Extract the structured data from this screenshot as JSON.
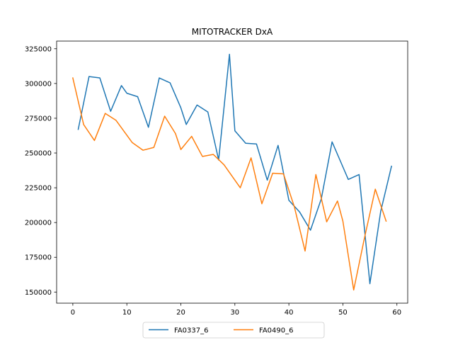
{
  "chart_data": {
    "type": "line",
    "title": "MITOTRACKER DxA",
    "xlabel": "",
    "ylabel": "",
    "xlim": [
      -3,
      62
    ],
    "ylim": [
      142000,
      330500
    ],
    "xticks": [
      0,
      10,
      20,
      30,
      40,
      50,
      60
    ],
    "yticks": [
      150000,
      175000,
      200000,
      225000,
      250000,
      275000,
      300000,
      325000
    ],
    "grid": false,
    "legend_position": "bottom-center",
    "series": [
      {
        "name": "FA0337_6",
        "color": "#1f77b4",
        "x": [
          1,
          3,
          5,
          7,
          9,
          10,
          12,
          14,
          16,
          18,
          20,
          21,
          23,
          25,
          27,
          29,
          30,
          32,
          34,
          36,
          38,
          40,
          42,
          44,
          46,
          48,
          50,
          51,
          53,
          55,
          57,
          59
        ],
        "y": [
          267000,
          305000,
          304000,
          280000,
          298500,
          293000,
          290500,
          268500,
          304000,
          300500,
          282500,
          270500,
          284500,
          279500,
          245000,
          321000,
          266000,
          257000,
          256500,
          230500,
          255500,
          216000,
          207500,
          194500,
          217000,
          258000,
          240000,
          231000,
          234500,
          156000,
          208000,
          240500
        ]
      },
      {
        "name": "FA0490_6",
        "color": "#ff7f0e",
        "x": [
          0,
          2,
          4,
          6,
          8,
          11,
          13,
          15,
          17,
          19,
          20,
          22,
          24,
          26,
          28,
          31,
          33,
          35,
          37,
          39,
          41,
          43,
          45,
          47,
          49,
          50,
          52,
          54,
          56,
          58
        ],
        "y": [
          304000,
          270500,
          259000,
          278500,
          273500,
          257500,
          252000,
          254000,
          276500,
          264000,
          252500,
          262000,
          247500,
          249000,
          241500,
          225000,
          246500,
          213500,
          235500,
          235000,
          211500,
          179500,
          234500,
          200500,
          215500,
          201000,
          151500,
          189000,
          224000,
          201000
        ]
      }
    ]
  }
}
